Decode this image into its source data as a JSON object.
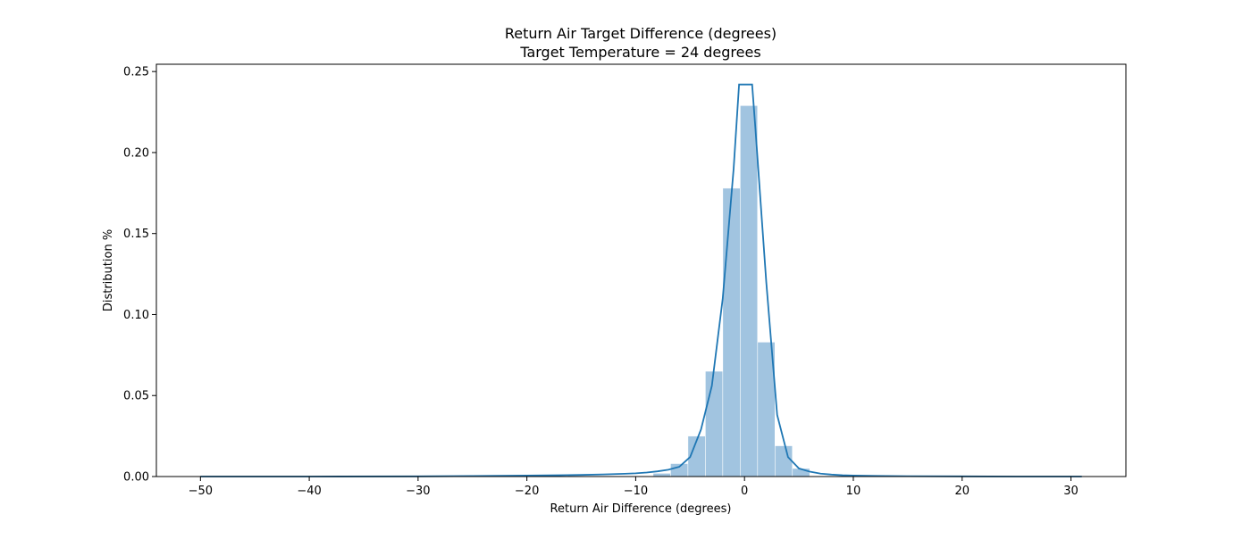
{
  "chart_data": {
    "type": "bar",
    "title": "Return Air Target Difference (degrees)",
    "subtitle": "Target Temperature = 24 degrees",
    "xlabel": "Return Air Difference (degrees)",
    "ylabel": "Distribution %",
    "xlim": [
      -54.05,
      35.05
    ],
    "ylim": [
      0,
      0.2545
    ],
    "xticks": [
      -50,
      -40,
      -30,
      -20,
      -10,
      0,
      10,
      20,
      30
    ],
    "xtick_labels": [
      "−50",
      "−40",
      "−30",
      "−20",
      "−10",
      "0",
      "10",
      "20",
      "30"
    ],
    "yticks": [
      0,
      0.05,
      0.1,
      0.15,
      0.2,
      0.25
    ],
    "ytick_labels": [
      "0.00",
      "0.05",
      "0.10",
      "0.15",
      "0.20",
      "0.25"
    ],
    "grid": false,
    "histogram": {
      "bin_edges": [
        -8.4,
        -6.8,
        -5.2,
        -3.6,
        -2.0,
        -0.4,
        1.2,
        2.8,
        4.4,
        6.0
      ],
      "densities": [
        0.002,
        0.008,
        0.025,
        0.065,
        0.178,
        0.229,
        0.083,
        0.019,
        0.005
      ]
    },
    "kde": {
      "x": [
        -50,
        -40,
        -30,
        -25,
        -20,
        -17,
        -15,
        -13,
        -11,
        -10,
        -9,
        -8,
        -7,
        -6,
        -5,
        -4,
        -3,
        -2,
        -1,
        -0.5,
        0,
        0.7,
        1,
        2,
        3,
        4,
        5,
        6,
        7,
        8,
        9,
        10,
        12,
        15,
        20,
        25,
        31
      ],
      "y": [
        0.0,
        0.0,
        0.0001,
        0.0003,
        0.0006,
        0.0008,
        0.001,
        0.0013,
        0.0017,
        0.002,
        0.0025,
        0.0032,
        0.0042,
        0.006,
        0.012,
        0.029,
        0.056,
        0.11,
        0.19,
        0.242,
        0.242,
        0.242,
        0.215,
        0.12,
        0.038,
        0.012,
        0.005,
        0.003,
        0.0018,
        0.0012,
        0.0008,
        0.0006,
        0.0004,
        0.0002,
        0.0001,
        0.0,
        0.0
      ]
    },
    "colors": {
      "bars": "#a1c4e0",
      "kde_line": "#1f77b4"
    }
  }
}
